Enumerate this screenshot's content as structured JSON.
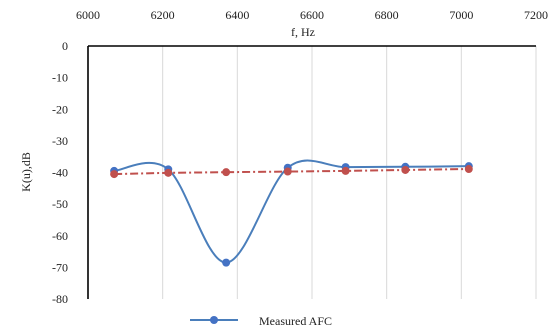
{
  "chart_data": {
    "type": "line",
    "xlabel": "f, Hz",
    "ylabel": "K(u),dB",
    "x_ticks": [
      "6000",
      "6200",
      "6400",
      "6600",
      "6800",
      "7000",
      "7200"
    ],
    "y_ticks": [
      "0",
      "-10",
      "-20",
      "-30",
      "-40",
      "-50",
      "-60",
      "-70",
      "-80"
    ],
    "xlim": [
      6000,
      7200
    ],
    "ylim": [
      -80,
      0
    ],
    "x_axis_position": "top",
    "grid": "vertical",
    "series": [
      {
        "name": "Measured AFC",
        "x": [
          6070,
          6215,
          6370,
          6535,
          6690,
          6850,
          7020
        ],
        "y": [
          -39.5,
          -39,
          -68.5,
          -38.5,
          -38.3,
          -38.2,
          -38
        ],
        "color": "#4a7ebb",
        "marker_color": "#4472c4",
        "style": "smooth-solid"
      },
      {
        "name": "",
        "x": [
          6070,
          6215,
          6370,
          6535,
          6690,
          6850,
          7020
        ],
        "y": [
          -40.5,
          -40.1,
          -39.9,
          -39.7,
          -39.5,
          -39.2,
          -38.9
        ],
        "color": "#c0504d",
        "marker_color": "#c0504d",
        "style": "dash-dot"
      }
    ],
    "legend": {
      "position": "bottom",
      "entries": [
        "Measured AFC"
      ]
    }
  }
}
